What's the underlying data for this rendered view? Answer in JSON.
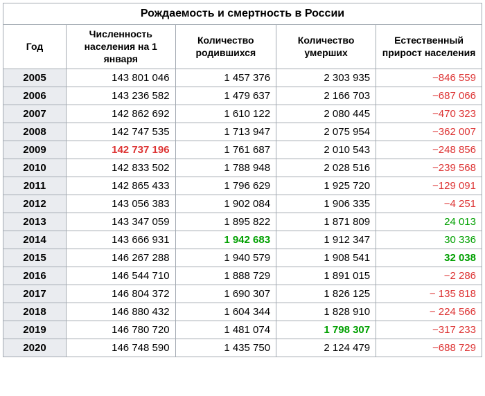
{
  "title": "Рождаемость и смертность в России",
  "columns": [
    "Год",
    "Численность населения на 1 января",
    "Количество родившихся",
    "Количество умерших",
    "Естественный прирост населения"
  ],
  "col_widths": [
    "90px",
    "160px",
    "145px",
    "145px",
    "150px"
  ],
  "rows": [
    {
      "year": "2005",
      "pop": "143 801 046",
      "births": "1 457 376",
      "deaths": "2 303 935",
      "net": "−846 559",
      "net_sign": "neg"
    },
    {
      "year": "2006",
      "pop": "143 236 582",
      "births": "1 479 637",
      "deaths": "2 166 703",
      "net": "−687 066",
      "net_sign": "neg"
    },
    {
      "year": "2007",
      "pop": "142 862 692",
      "births": "1 610 122",
      "deaths": "2 080 445",
      "net": "−470 323",
      "net_sign": "neg"
    },
    {
      "year": "2008",
      "pop": "142 747 535",
      "births": "1 713 947",
      "deaths": "2 075 954",
      "net": "−362 007",
      "net_sign": "neg"
    },
    {
      "year": "2009",
      "pop": "142 737 196",
      "pop_highlight": true,
      "births": "1 761 687",
      "deaths": "2 010 543",
      "net": "−248 856",
      "net_sign": "neg"
    },
    {
      "year": "2010",
      "pop": "142 833 502",
      "births": "1 788 948",
      "deaths": "2 028 516",
      "net": "−239 568",
      "net_sign": "neg"
    },
    {
      "year": "2011",
      "pop": "142 865 433",
      "births": "1 796 629",
      "deaths": "1 925 720",
      "net": "−129 091",
      "net_sign": "neg"
    },
    {
      "year": "2012",
      "pop": "143 056 383",
      "births": "1 902 084",
      "deaths": "1 906 335",
      "net": "−4 251",
      "net_sign": "neg"
    },
    {
      "year": "2013",
      "pop": "143 347 059",
      "births": "1 895 822",
      "deaths": "1 871 809",
      "net": "24 013",
      "net_sign": "pos"
    },
    {
      "year": "2014",
      "pop": "143 666 931",
      "births": "1 942 683",
      "births_highlight": true,
      "deaths": "1 912 347",
      "net": "30 336",
      "net_sign": "pos"
    },
    {
      "year": "2015",
      "pop": "146 267 288",
      "births": "1 940 579",
      "deaths": "1 908 541",
      "net": "32 038",
      "net_sign": "pos",
      "net_bold": true
    },
    {
      "year": "2016",
      "pop": "146 544 710",
      "births": "1 888 729",
      "deaths": "1 891 015",
      "net": "−2 286",
      "net_sign": "neg"
    },
    {
      "year": "2017",
      "pop": "146 804 372",
      "births": "1 690 307",
      "deaths": "1 826 125",
      "net": "− 135 818",
      "net_sign": "neg"
    },
    {
      "year": "2018",
      "pop": "146 880 432",
      "births": "1 604 344",
      "deaths": "1 828 910",
      "net": "− 224 566",
      "net_sign": "neg"
    },
    {
      "year": "2019",
      "pop": "146 780 720",
      "births": "1 481 074",
      "deaths": "1 798 307",
      "deaths_highlight": true,
      "net": "−317 233",
      "net_sign": "neg"
    },
    {
      "year": "2020",
      "pop": "146 748 590",
      "births": "1 435 750",
      "deaths": "2 124 479",
      "net": "−688 729",
      "net_sign": "neg"
    }
  ],
  "colors": {
    "border": "#a2a9b1",
    "year_bg": "#eaecf0",
    "negative": "#d33",
    "positive": "#00a000"
  }
}
